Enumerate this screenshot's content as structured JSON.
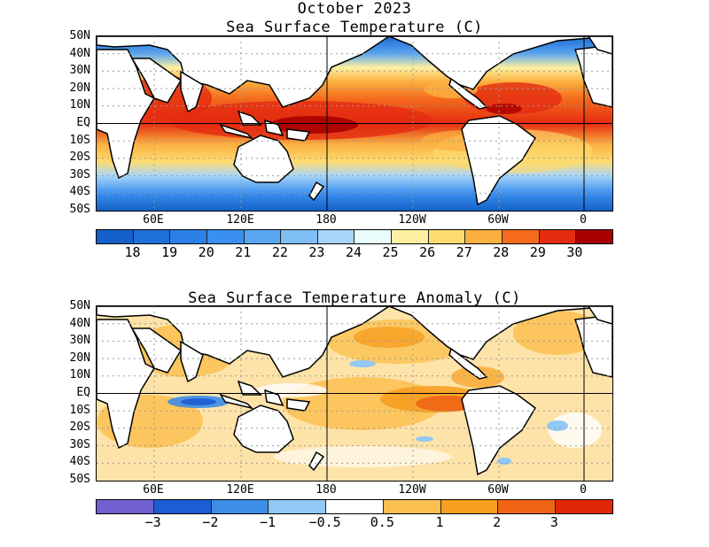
{
  "top_panel": {
    "title_line1": "October 2023",
    "title_line2": "Sea Surface Temperature (C)",
    "colorbar_labels": [
      "18",
      "19",
      "20",
      "21",
      "22",
      "23",
      "24",
      "25",
      "26",
      "27",
      "28",
      "29",
      "30"
    ],
    "colorbar_colors": [
      "#1560c8",
      "#1e70d8",
      "#2a80e6",
      "#3a90ee",
      "#5aa6f2",
      "#80bef6",
      "#a8d4fa",
      "#e8fcfc",
      "#fef0a0",
      "#fedc70",
      "#fbb040",
      "#f56a1c",
      "#e42c10",
      "#a80000"
    ]
  },
  "bottom_panel": {
    "title": "Sea Surface Temperature Anomaly (C)",
    "colorbar_labels": [
      "−3",
      "−2",
      "−1",
      "−0.5",
      "0.5",
      "1",
      "2",
      "3"
    ],
    "colorbar_colors": [
      "#7060d0",
      "#1c5cd4",
      "#3c8ce8",
      "#90c8f6",
      "#ffffff",
      "#fbc050",
      "#f89e20",
      "#f06414",
      "#e02808"
    ]
  },
  "lat_labels": [
    "50N",
    "40N",
    "30N",
    "20N",
    "10N",
    "EQ",
    "10S",
    "20S",
    "30S",
    "40S",
    "50S"
  ],
  "lon_labels": [
    "60E",
    "120E",
    "180",
    "120W",
    "60W",
    "0"
  ]
}
